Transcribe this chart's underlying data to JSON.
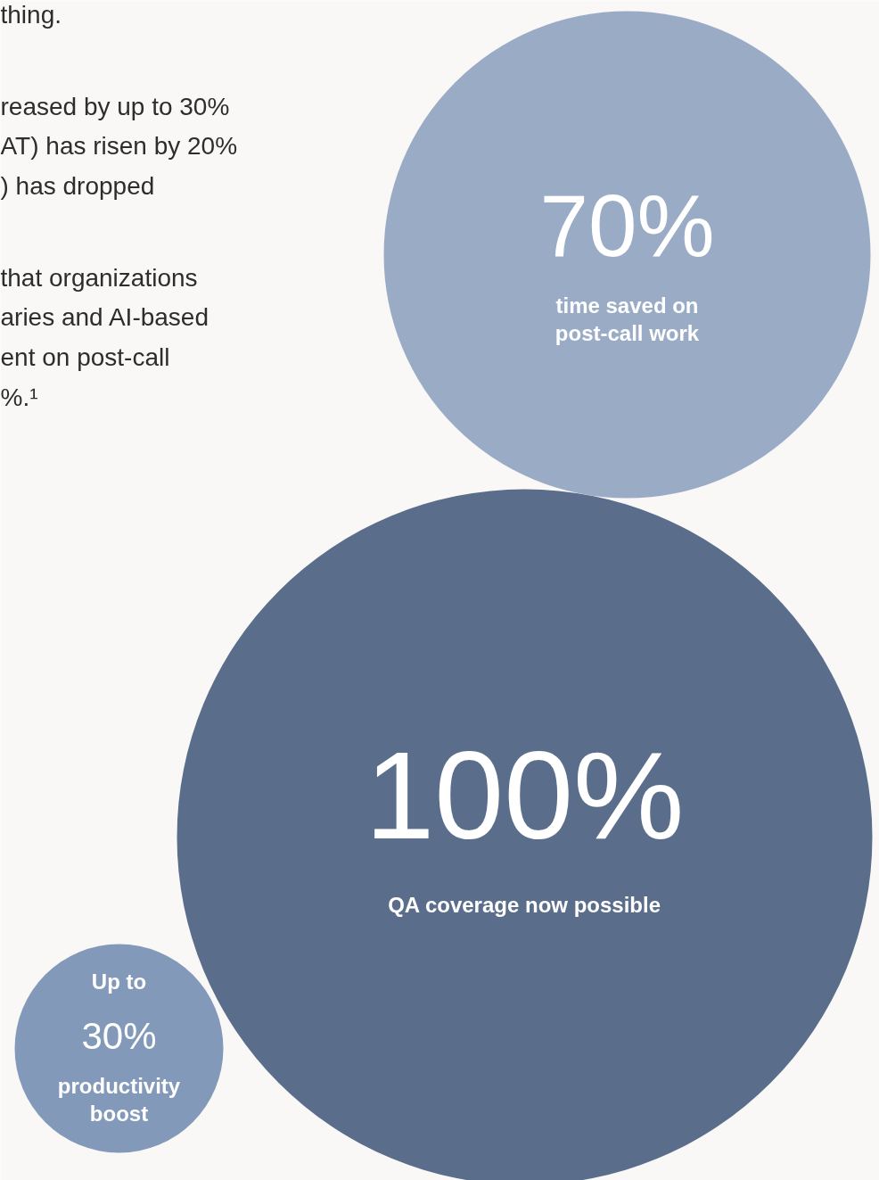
{
  "chart_data": {
    "type": "other",
    "categories": [
      "time saved on\npost-call work",
      "QA coverage now possible",
      "productivity\nboost"
    ],
    "values": [
      70,
      100,
      30
    ],
    "value_labels": [
      "70%",
      "100%",
      "30%"
    ],
    "colors": [
      "#9aabc6",
      "#5a6e8c",
      "#8399ba"
    ],
    "annotations": [
      "thing.",
      "reased by up to 30%\nAT) has risen by 20%\n) has dropped",
      "that organizations\naries and AI-based\nent on post-call\n%.¹",
      "Up to"
    ]
  }
}
